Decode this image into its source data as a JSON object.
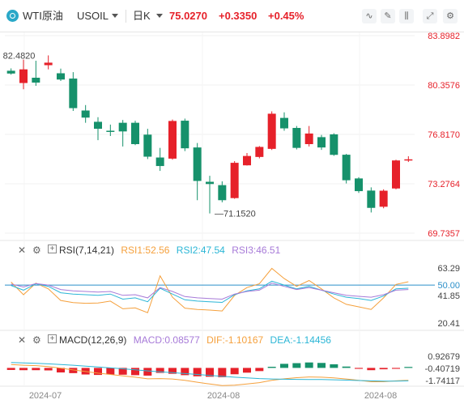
{
  "header": {
    "symbol_name": "WTI原油",
    "symbol_code": "USOIL",
    "period": "日K",
    "last_price": "75.0270",
    "change": "+0.3350",
    "change_pct": "+0.45%",
    "colors": {
      "up": "#e6212a",
      "down": "#16916b",
      "muted": "#555555"
    },
    "tools": [
      {
        "icon": "line-tool-icon",
        "glyph": "∿"
      },
      {
        "icon": "draw-pen-icon",
        "glyph": "✎"
      },
      {
        "icon": "candle-type-icon",
        "glyph": "⫼"
      },
      {
        "icon": "fullscreen-icon",
        "glyph": "⤢"
      },
      {
        "icon": "settings-icon",
        "glyph": "⚙"
      }
    ]
  },
  "chart_data": [
    {
      "type": "candlestick",
      "title": "WTI原油 USOIL 日K",
      "y_ticks": [
        "83.8982",
        "80.3576",
        "76.8170",
        "73.2764",
        "69.7357"
      ],
      "ylim": [
        69.7357,
        83.8982
      ],
      "high_label": "82.4820",
      "low_label": "71.1520",
      "x_ticks": [
        "2024-07",
        "2024-08",
        "2024-08"
      ],
      "colors": {
        "up": "#e6212a",
        "down": "#16916b"
      },
      "candles": [
        {
          "o": 81.38,
          "h": 81.55,
          "c": 81.18,
          "l": 81.1
        },
        {
          "o": 80.5,
          "h": 82.18,
          "c": 81.48,
          "l": 80.05
        },
        {
          "o": 80.88,
          "h": 82.1,
          "c": 80.53,
          "l": 80.3
        },
        {
          "o": 81.78,
          "h": 82.48,
          "c": 81.96,
          "l": 81.48
        },
        {
          "o": 81.2,
          "h": 81.53,
          "c": 80.75,
          "l": 80.65
        },
        {
          "o": 80.82,
          "h": 81.28,
          "c": 78.7,
          "l": 78.5
        },
        {
          "o": 78.53,
          "h": 78.92,
          "c": 78.02,
          "l": 77.65
        },
        {
          "o": 77.72,
          "h": 78.05,
          "c": 77.22,
          "l": 76.4
        },
        {
          "o": 77.08,
          "h": 77.52,
          "c": 77.0,
          "l": 76.7
        },
        {
          "o": 77.65,
          "h": 77.85,
          "c": 77.03,
          "l": 75.95
        },
        {
          "o": 77.65,
          "h": 77.8,
          "c": 76.12,
          "l": 76.05
        },
        {
          "o": 76.8,
          "h": 77.22,
          "c": 75.22,
          "l": 75.05
        },
        {
          "o": 75.16,
          "h": 75.85,
          "c": 74.55,
          "l": 74.2
        },
        {
          "o": 75.08,
          "h": 77.88,
          "c": 77.78,
          "l": 75.0
        },
        {
          "o": 77.8,
          "h": 77.95,
          "c": 75.82,
          "l": 75.62
        },
        {
          "o": 75.88,
          "h": 76.2,
          "c": 73.48,
          "l": 72.1
        },
        {
          "o": 73.42,
          "h": 73.85,
          "c": 73.26,
          "l": 71.15
        },
        {
          "o": 73.18,
          "h": 73.45,
          "c": 72.1,
          "l": 71.95
        },
        {
          "o": 72.25,
          "h": 74.9,
          "c": 74.78,
          "l": 72.2
        },
        {
          "o": 74.6,
          "h": 75.48,
          "c": 75.27,
          "l": 74.58
        },
        {
          "o": 75.2,
          "h": 75.98,
          "c": 75.92,
          "l": 75.1
        },
        {
          "o": 75.78,
          "h": 78.47,
          "c": 78.3,
          "l": 75.7
        },
        {
          "o": 78.0,
          "h": 78.4,
          "c": 77.25,
          "l": 77.08
        },
        {
          "o": 77.28,
          "h": 77.42,
          "c": 75.85,
          "l": 75.74
        },
        {
          "o": 76.12,
          "h": 77.42,
          "c": 76.88,
          "l": 75.95
        },
        {
          "o": 76.62,
          "h": 76.78,
          "c": 75.88,
          "l": 75.71
        },
        {
          "o": 76.82,
          "h": 76.9,
          "c": 75.35,
          "l": 75.28
        },
        {
          "o": 75.36,
          "h": 75.42,
          "c": 73.53,
          "l": 73.3
        },
        {
          "o": 73.66,
          "h": 73.75,
          "c": 72.75,
          "l": 72.62
        },
        {
          "o": 72.79,
          "h": 73.02,
          "c": 71.55,
          "l": 71.22
        },
        {
          "o": 71.63,
          "h": 72.88,
          "c": 72.78,
          "l": 71.52
        },
        {
          "o": 72.94,
          "h": 75.0,
          "c": 74.95,
          "l": 72.88
        },
        {
          "o": 75.0,
          "h": 75.25,
          "c": 75.03,
          "l": 74.84
        }
      ]
    },
    {
      "type": "line",
      "title": "RSI(7,14,21)",
      "legend": [
        {
          "name": "RSI1",
          "value": "52.56",
          "color": "#f5a03c"
        },
        {
          "name": "RSI2",
          "value": "47.54",
          "color": "#2bb6d6"
        },
        {
          "name": "RSI3",
          "value": "46.51",
          "color": "#a77ad8"
        }
      ],
      "y_ticks": [
        "63.29",
        "50.00",
        "41.85",
        "20.41"
      ],
      "ylim": [
        20.41,
        63.29
      ],
      "ref_line": 50.0,
      "series": [
        {
          "name": "RSI1",
          "color": "#f5a03c",
          "values": [
            52.3,
            42.5,
            51.5,
            47.0,
            38.0,
            36.3,
            35.8,
            36.0,
            37.5,
            31.5,
            32.2,
            28.5,
            57.2,
            40.5,
            32.0,
            31.0,
            30.5,
            29.8,
            42.0,
            48.0,
            51.0,
            63.0,
            55.0,
            49.0,
            53.5,
            47.0,
            40.0,
            35.0,
            33.0,
            31.0,
            40.0,
            50.5,
            52.56
          ]
        },
        {
          "name": "RSI2",
          "color": "#2bb6d6",
          "values": [
            49.7,
            46.0,
            51.0,
            49.0,
            44.0,
            43.0,
            42.5,
            42.0,
            43.0,
            39.0,
            40.0,
            37.0,
            47.5,
            43.0,
            38.5,
            37.5,
            37.0,
            36.5,
            42.5,
            45.5,
            47.0,
            53.0,
            50.0,
            47.0,
            49.0,
            46.0,
            43.0,
            40.5,
            39.5,
            38.0,
            41.5,
            47.0,
            47.54
          ]
        },
        {
          "name": "RSI3",
          "color": "#a77ad8",
          "values": [
            50.8,
            48.5,
            51.2,
            50.0,
            46.5,
            45.5,
            45.0,
            44.5,
            45.0,
            42.0,
            42.5,
            40.0,
            48.0,
            45.0,
            41.0,
            40.0,
            39.5,
            39.0,
            43.0,
            45.0,
            46.0,
            51.5,
            49.0,
            46.5,
            48.0,
            46.0,
            44.0,
            42.0,
            41.2,
            40.5,
            42.5,
            46.0,
            46.51
          ]
        }
      ]
    },
    {
      "type": "bar",
      "title": "MACD(12,26,9)",
      "legend": [
        {
          "name": "MACD",
          "value": "0.08577",
          "color": "#a77ad8"
        },
        {
          "name": "DIF",
          "value": "-1.10167",
          "color": "#f5a03c"
        },
        {
          "name": "DEA",
          "value": "-1.14456",
          "color": "#2bb6d6"
        }
      ],
      "y_ticks": [
        "0.92679",
        "-0.40719",
        "-1.74117"
      ],
      "ylim": [
        -1.74117,
        0.92679
      ],
      "colors": {
        "positive": "#16916b",
        "negative": "#e6212a"
      },
      "series": [
        {
          "name": "MACD",
          "values": [
            -0.18,
            -0.2,
            -0.2,
            -0.22,
            -0.4,
            -0.46,
            -0.58,
            -0.62,
            -0.58,
            -0.6,
            -0.64,
            -0.68,
            -0.44,
            -0.52,
            -0.64,
            -0.74,
            -0.78,
            -0.82,
            -0.56,
            -0.42,
            -0.28,
            0.1,
            0.36,
            0.42,
            0.48,
            0.44,
            0.32,
            0.12,
            -0.08,
            -0.2,
            -0.12,
            -0.08,
            0.08577
          ]
        },
        {
          "name": "DIF",
          "values": [
            0.3,
            0.24,
            0.2,
            0.12,
            -0.02,
            -0.18,
            -0.32,
            -0.46,
            -0.58,
            -0.7,
            -0.82,
            -0.96,
            -0.94,
            -0.98,
            -1.1,
            -1.26,
            -1.42,
            -1.56,
            -1.52,
            -1.42,
            -1.3,
            -1.1,
            -0.96,
            -0.86,
            -0.8,
            -0.82,
            -0.88,
            -0.98,
            -1.1,
            -1.22,
            -1.22,
            -1.14,
            -1.10167
          ]
        },
        {
          "name": "DEA",
          "values": [
            0.48,
            0.44,
            0.4,
            0.36,
            0.3,
            0.24,
            0.16,
            0.08,
            0.0,
            -0.08,
            -0.16,
            -0.26,
            -0.34,
            -0.42,
            -0.5,
            -0.58,
            -0.66,
            -0.74,
            -0.82,
            -0.88,
            -0.94,
            -0.98,
            -1.0,
            -1.01,
            -1.02,
            -1.03,
            -1.05,
            -1.08,
            -1.11,
            -1.14,
            -1.16,
            -1.16,
            -1.14456
          ]
        }
      ]
    }
  ]
}
